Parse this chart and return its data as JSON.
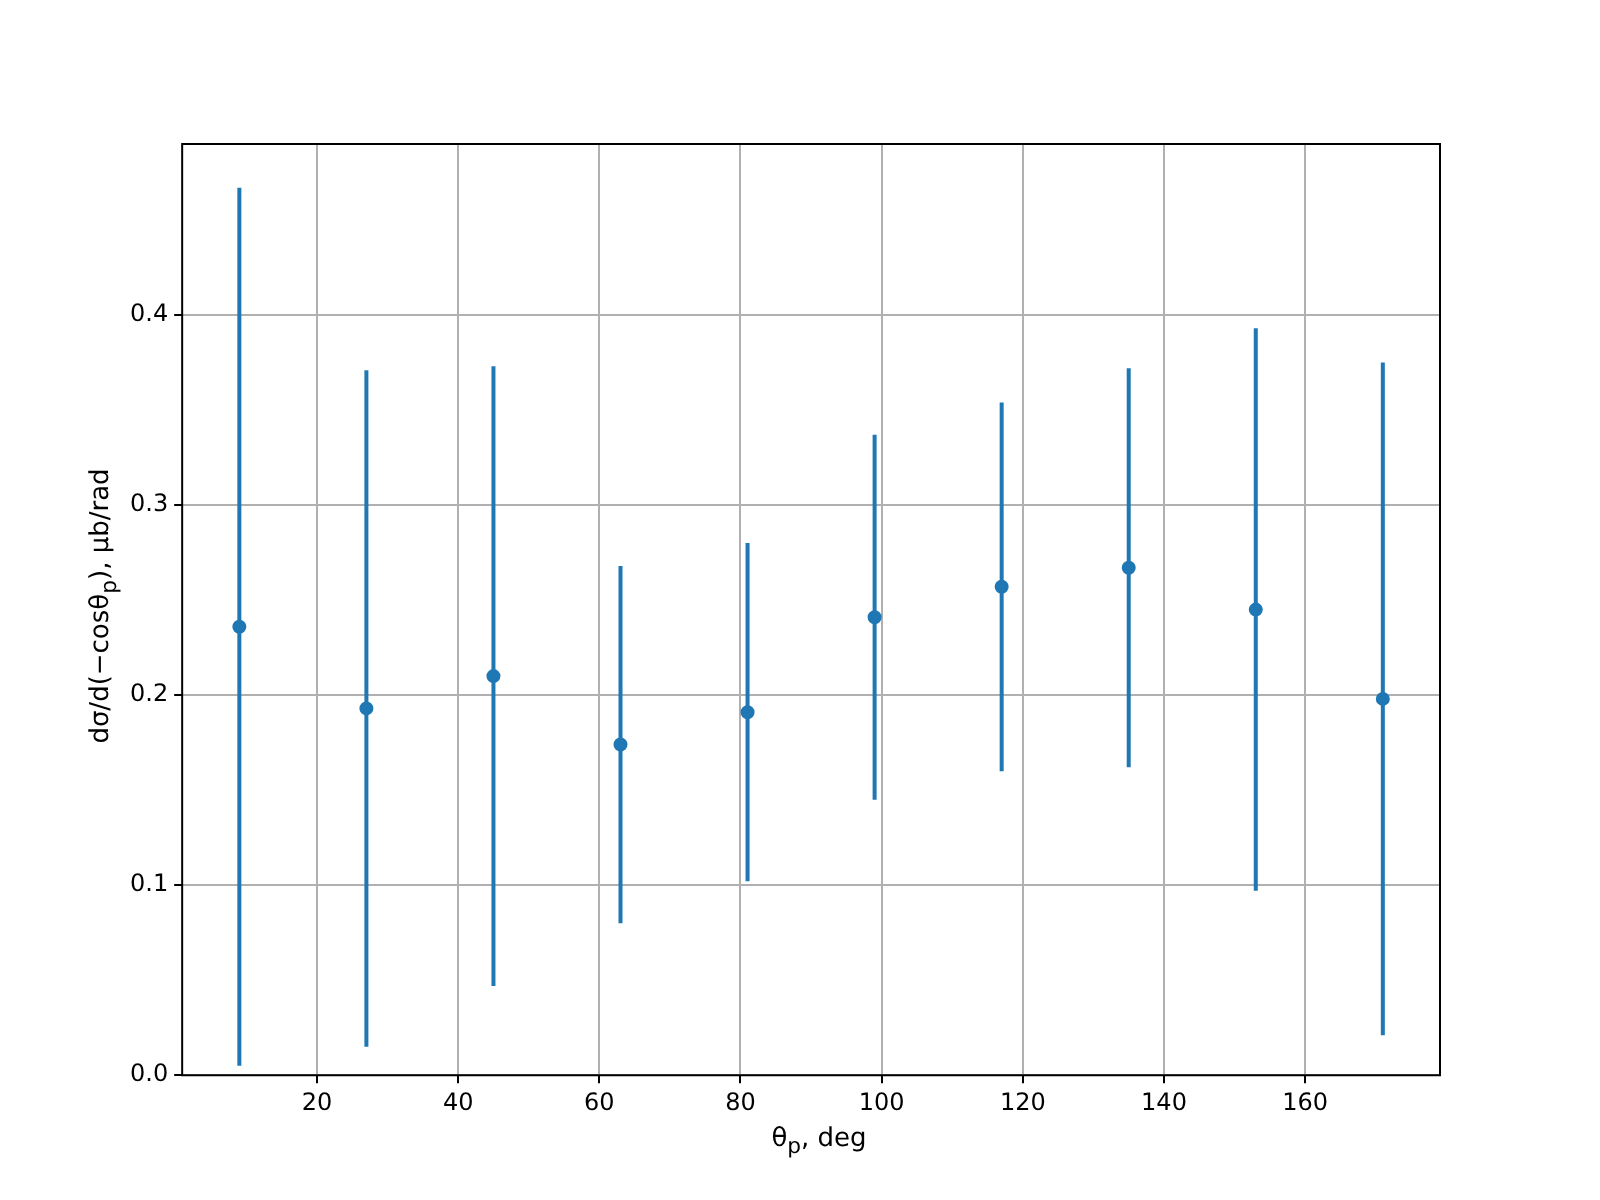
{
  "chart_data": {
    "type": "scatter",
    "xlabel": "θ$_{p}$, deg",
    "ylabel": "dσ/d(−cosθ$_{p}$), μb/rad",
    "x": [
      9,
      27,
      45,
      63,
      81,
      99,
      117,
      135,
      153,
      171
    ],
    "series": [
      {
        "color": "#1f77b4",
        "values": [
          0.236,
          0.193,
          0.21,
          0.174,
          0.191,
          0.241,
          0.257,
          0.267,
          0.245,
          0.198
        ],
        "errors": [
          0.231,
          0.178,
          0.163,
          0.094,
          0.089,
          0.096,
          0.097,
          0.105,
          0.148,
          0.177
        ]
      }
    ],
    "xlim": [
      0.9,
      179.1
    ],
    "xticks": [
      20,
      40,
      60,
      80,
      100,
      120,
      140,
      160
    ],
    "ylim": [
      0,
      0.49
    ],
    "yticks": [
      {
        "value": 0,
        "label": "0.0"
      },
      0.1,
      0.2,
      0.3,
      0.4
    ],
    "grid": true,
    "marker": "circle"
  }
}
